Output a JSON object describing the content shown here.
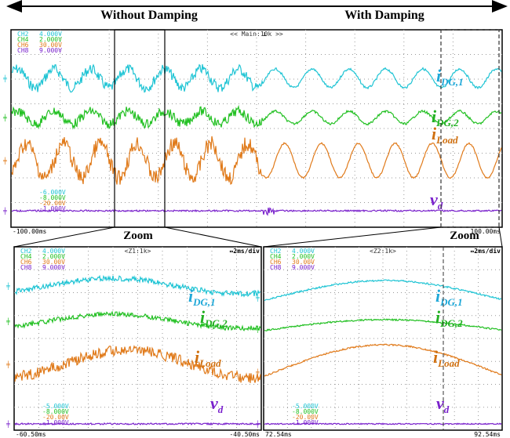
{
  "header": {
    "left": "Without Damping",
    "right": "With Damping"
  },
  "channels": [
    {
      "name": "CH2",
      "scale": "4.000V"
    },
    {
      "name": "CH4",
      "scale": "2.000V"
    },
    {
      "name": "CH6",
      "scale": "30.00V"
    },
    {
      "name": "CH8",
      "scale": "9.000V"
    }
  ],
  "main": {
    "timebase": "<< Main:10k >>",
    "offsets": [
      "-6.000V",
      "-8.000V",
      "-20.00V",
      "-1.000V"
    ],
    "start": "-100.00ms",
    "end": "100.00ms"
  },
  "signals": [
    {
      "symbol": "i",
      "subscript": "DG,1"
    },
    {
      "symbol": "i",
      "subscript": "DG,2"
    },
    {
      "symbol": "i",
      "subscript": "Load"
    },
    {
      "symbol": "v",
      "subscript": "d"
    }
  ],
  "zoom_label": "Zoom",
  "zooms": [
    {
      "window": "<Z1:1k>",
      "timediv": "↔2ms/div",
      "offsets": [
        "-5.000V",
        "-8.000V",
        "-20.00V",
        "-1.000V"
      ],
      "start": "-60.50ms",
      "end": "-40.50ms"
    },
    {
      "window": "<Z2:1k>",
      "timediv": "↔2ms/div",
      "offsets": [
        "-5.000V",
        "-8.000V",
        "-20.00V",
        "-1.000V"
      ],
      "start": "72.54ms",
      "end": "92.54ms"
    }
  ]
}
